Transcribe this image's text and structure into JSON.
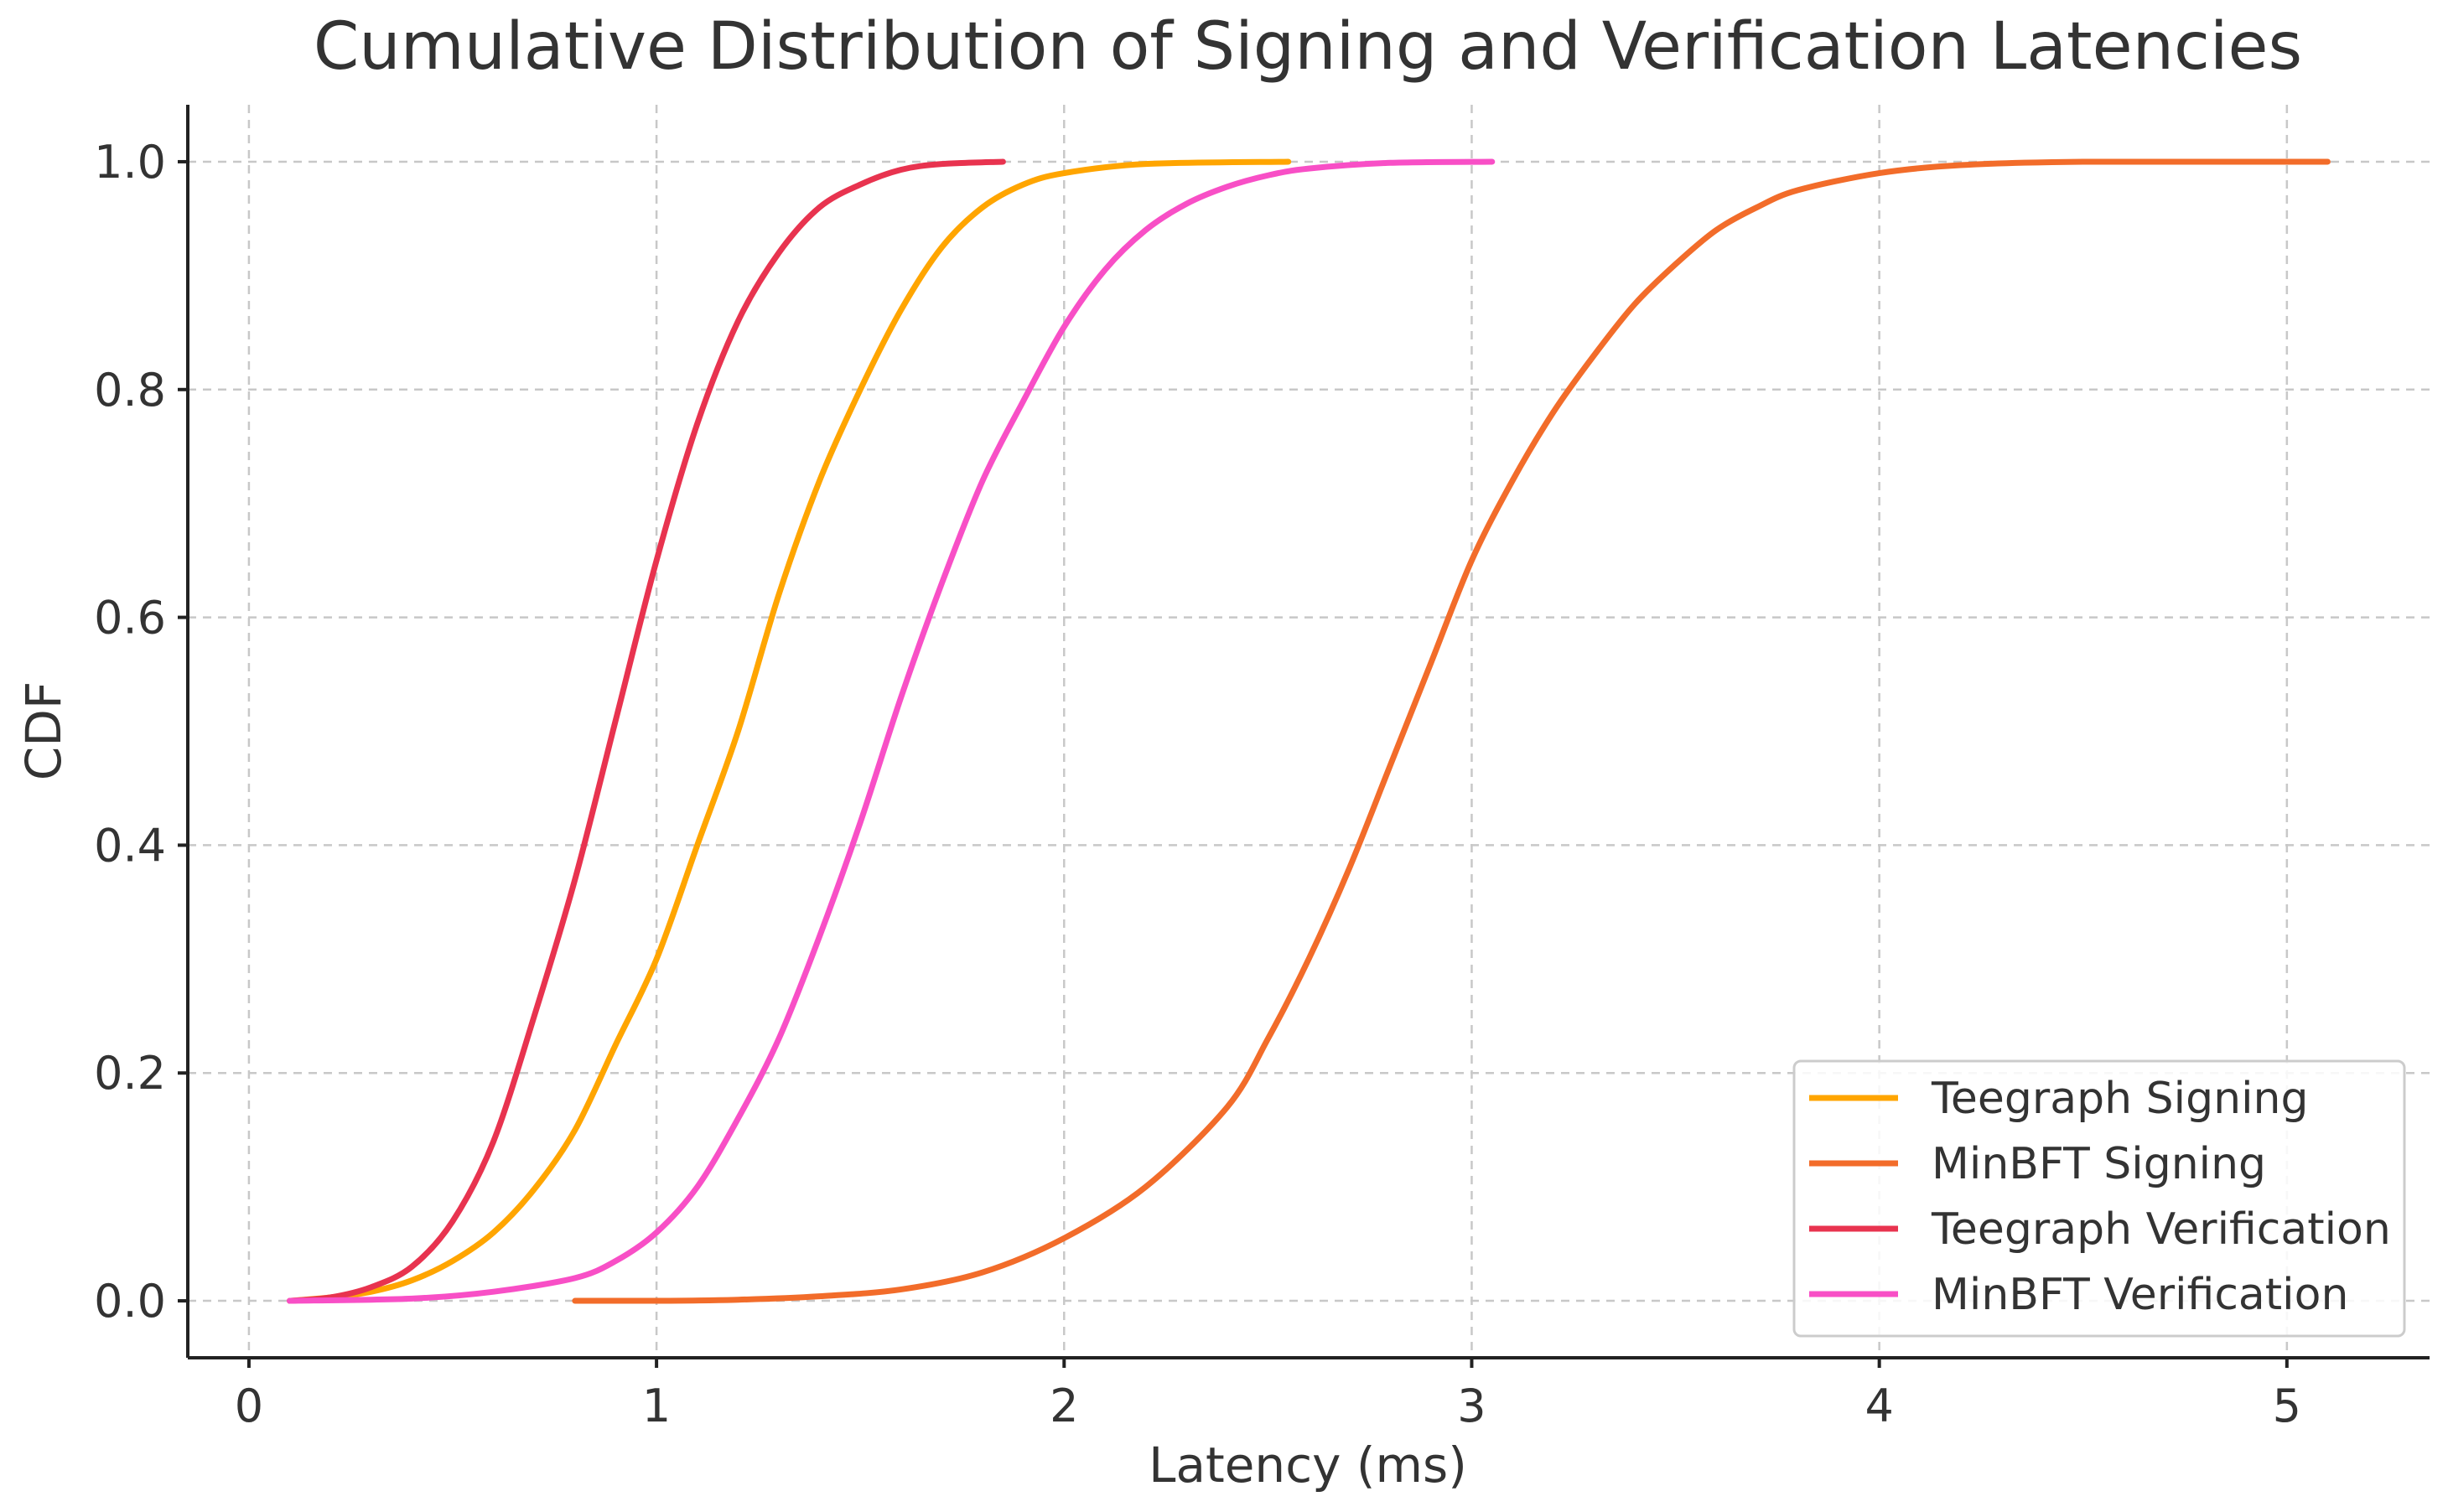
{
  "chart_data": {
    "type": "line",
    "title": "Cumulative Distribution of Signing and Verification Latencies",
    "xlabel": "Latency (ms)",
    "ylabel": "CDF",
    "xlim": [
      -0.15,
      5.35
    ],
    "ylim": [
      -0.05,
      1.05
    ],
    "x_ticks": [
      0,
      1,
      2,
      3,
      4,
      5
    ],
    "y_ticks": [
      0.0,
      0.2,
      0.4,
      0.6,
      0.8,
      1.0
    ],
    "x_tick_labels": [
      "0",
      "1",
      "2",
      "3",
      "4",
      "5"
    ],
    "y_tick_labels": [
      "0.0",
      "0.2",
      "0.4",
      "0.6",
      "0.8",
      "1.0"
    ],
    "grid": true,
    "legend_position": "bottom-right",
    "series": [
      {
        "name": "Teegraph Signing",
        "color": "#FFA500",
        "points": [
          [
            0.1,
            0.0
          ],
          [
            0.2,
            0.003
          ],
          [
            0.3,
            0.008
          ],
          [
            0.4,
            0.018
          ],
          [
            0.5,
            0.035
          ],
          [
            0.6,
            0.06
          ],
          [
            0.7,
            0.098
          ],
          [
            0.8,
            0.15
          ],
          [
            0.9,
            0.225
          ],
          [
            1.0,
            0.3
          ],
          [
            1.1,
            0.4
          ],
          [
            1.2,
            0.5
          ],
          [
            1.3,
            0.62
          ],
          [
            1.4,
            0.72
          ],
          [
            1.5,
            0.8
          ],
          [
            1.6,
            0.87
          ],
          [
            1.7,
            0.925
          ],
          [
            1.8,
            0.96
          ],
          [
            1.9,
            0.98
          ],
          [
            2.0,
            0.99
          ],
          [
            2.2,
            0.998
          ],
          [
            2.55,
            1.0
          ]
        ]
      },
      {
        "name": "MinBFT Signing",
        "color": "#F26C2A",
        "points": [
          [
            0.8,
            0.0
          ],
          [
            1.0,
            0.0
          ],
          [
            1.2,
            0.001
          ],
          [
            1.4,
            0.004
          ],
          [
            1.6,
            0.01
          ],
          [
            1.8,
            0.025
          ],
          [
            2.0,
            0.055
          ],
          [
            2.2,
            0.1
          ],
          [
            2.4,
            0.17
          ],
          [
            2.5,
            0.23
          ],
          [
            2.6,
            0.3
          ],
          [
            2.7,
            0.38
          ],
          [
            2.8,
            0.47
          ],
          [
            2.9,
            0.56
          ],
          [
            3.0,
            0.65
          ],
          [
            3.1,
            0.72
          ],
          [
            3.2,
            0.78
          ],
          [
            3.3,
            0.83
          ],
          [
            3.4,
            0.875
          ],
          [
            3.5,
            0.91
          ],
          [
            3.6,
            0.94
          ],
          [
            3.7,
            0.96
          ],
          [
            3.8,
            0.975
          ],
          [
            4.0,
            0.99
          ],
          [
            4.2,
            0.997
          ],
          [
            4.5,
            1.0
          ],
          [
            5.1,
            1.0
          ]
        ]
      },
      {
        "name": "Teegraph Verification",
        "color": "#E8334F",
        "points": [
          [
            0.1,
            0.0
          ],
          [
            0.2,
            0.003
          ],
          [
            0.3,
            0.012
          ],
          [
            0.4,
            0.03
          ],
          [
            0.5,
            0.07
          ],
          [
            0.6,
            0.14
          ],
          [
            0.7,
            0.25
          ],
          [
            0.8,
            0.37
          ],
          [
            0.9,
            0.51
          ],
          [
            1.0,
            0.65
          ],
          [
            1.1,
            0.77
          ],
          [
            1.2,
            0.86
          ],
          [
            1.3,
            0.92
          ],
          [
            1.4,
            0.96
          ],
          [
            1.5,
            0.98
          ],
          [
            1.6,
            0.993
          ],
          [
            1.7,
            0.998
          ],
          [
            1.85,
            1.0
          ]
        ]
      },
      {
        "name": "MinBFT Verification",
        "color": "#F84FC6",
        "points": [
          [
            0.1,
            0.0
          ],
          [
            0.4,
            0.002
          ],
          [
            0.6,
            0.008
          ],
          [
            0.8,
            0.02
          ],
          [
            0.9,
            0.035
          ],
          [
            1.0,
            0.06
          ],
          [
            1.1,
            0.1
          ],
          [
            1.2,
            0.16
          ],
          [
            1.3,
            0.23
          ],
          [
            1.4,
            0.32
          ],
          [
            1.5,
            0.42
          ],
          [
            1.6,
            0.53
          ],
          [
            1.7,
            0.63
          ],
          [
            1.8,
            0.72
          ],
          [
            1.9,
            0.79
          ],
          [
            2.0,
            0.855
          ],
          [
            2.1,
            0.905
          ],
          [
            2.2,
            0.94
          ],
          [
            2.3,
            0.963
          ],
          [
            2.4,
            0.978
          ],
          [
            2.5,
            0.988
          ],
          [
            2.6,
            0.994
          ],
          [
            2.8,
            0.999
          ],
          [
            3.05,
            1.0
          ]
        ]
      }
    ]
  }
}
